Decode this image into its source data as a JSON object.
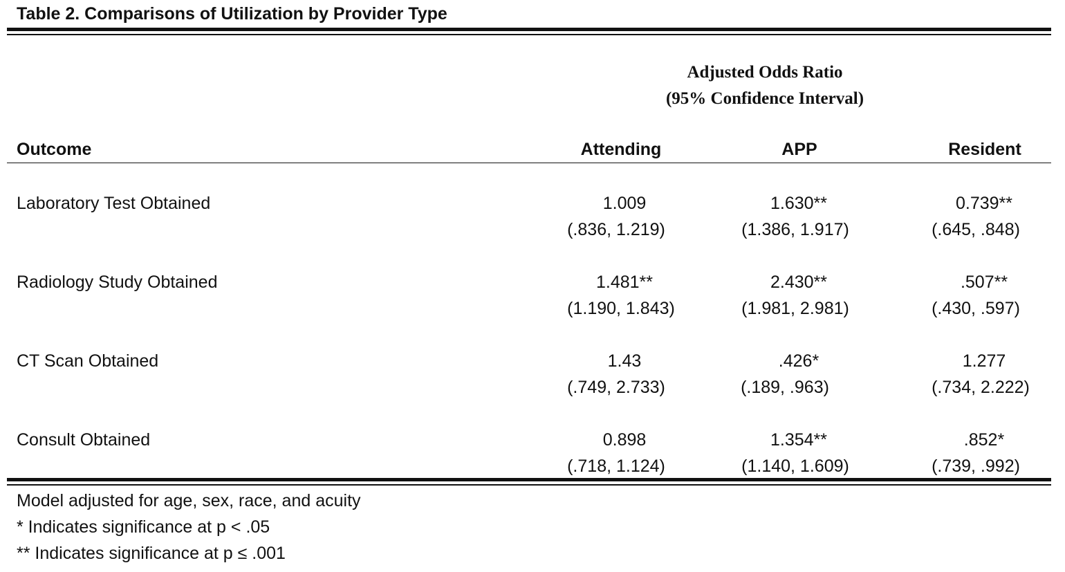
{
  "title": "Table 2. Comparisons of Utilization by Provider Type",
  "header": {
    "super_line1": "Adjusted Odds Ratio",
    "super_line2": "(95% Confidence Interval)",
    "outcome": "Outcome",
    "columns": [
      "Attending",
      "APP",
      "Resident"
    ]
  },
  "rows": [
    {
      "label": "Laboratory Test Obtained",
      "cells": [
        {
          "or": "1.009",
          "ci": "(.836, 1.219)"
        },
        {
          "or": "1.630**",
          "ci": "(1.386, 1.917)"
        },
        {
          "or": "0.739**",
          "ci": "(.645, .848)"
        }
      ]
    },
    {
      "label": "Radiology Study Obtained",
      "cells": [
        {
          "or": "1.481**",
          "ci": "(1.190, 1.843)"
        },
        {
          "or": "2.430**",
          "ci": "(1.981, 2.981)"
        },
        {
          "or": ".507**",
          "ci": "(.430, .597)"
        }
      ]
    },
    {
      "label": "CT Scan Obtained",
      "cells": [
        {
          "or": "1.43",
          "ci": "(.749, 2.733)"
        },
        {
          "or": ".426*",
          "ci": "(.189, .963)"
        },
        {
          "or": "1.277",
          "ci": "(.734, 2.222)"
        }
      ]
    },
    {
      "label": "Consult Obtained",
      "cells": [
        {
          "or": "0.898",
          "ci": "(.718, 1.124)"
        },
        {
          "or": "1.354**",
          "ci": "(1.140, 1.609)"
        },
        {
          "or": ".852*",
          "ci": "(.739, .992)"
        }
      ]
    }
  ],
  "notes": [
    "Model adjusted for age, sex, race, and acuity",
    "* Indicates significance at p < .05",
    "** Indicates significance at p ≤ .001"
  ]
}
